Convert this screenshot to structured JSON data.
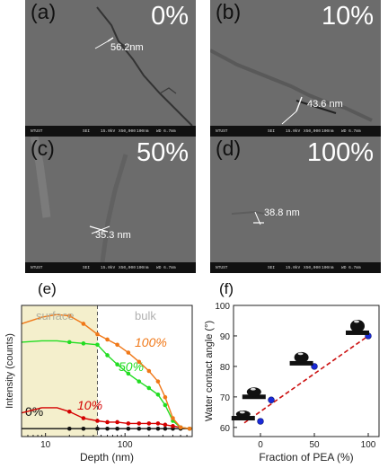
{
  "panels": [
    {
      "label": "(a)",
      "percent": "0%",
      "measure": "56.2nm"
    },
    {
      "label": "(b)",
      "percent": "10%",
      "measure": "43.6 nm"
    },
    {
      "label": "(c)",
      "percent": "50%",
      "measure": "35.3 nm"
    },
    {
      "label": "(d)",
      "percent": "100%",
      "measure": "38.8 nm"
    }
  ],
  "infobar": {
    "left": "NTUST",
    "a": "SEI",
    "b": "15.0kV",
    "c": "X50,000",
    "d": "100nm",
    "e": "WD 6.7mm"
  },
  "panel_e_label": "(e)",
  "panel_f_label": "(f)",
  "colors": {
    "surface_fill": "#f4efcc",
    "s0": "#111111",
    "s10": "#d40000",
    "s50": "#22dd22",
    "s100": "#f07818",
    "f_points": "#1a2ad8",
    "f_fit": "#cc1111"
  },
  "chart_data": [
    {
      "type": "line",
      "xlabel": "Depth (nm)",
      "ylabel": "Intensity (counts)",
      "xscale": "log",
      "xlim": [
        5,
        700
      ],
      "xticks": [
        "10",
        "100"
      ],
      "annotations": [
        "surface",
        "bulk"
      ],
      "boundary_x": 45,
      "series": [
        {
          "name": "0%",
          "x": [
            5,
            9,
            14,
            20,
            30,
            45,
            60,
            80,
            110,
            150,
            200,
            260,
            320,
            400,
            500,
            650
          ],
          "y": [
            0.06,
            0.06,
            0.06,
            0.06,
            0.06,
            0.06,
            0.06,
            0.06,
            0.06,
            0.06,
            0.06,
            0.06,
            0.06,
            0.06,
            0.06,
            0.06
          ]
        },
        {
          "name": "10%",
          "x": [
            5,
            9,
            14,
            20,
            30,
            45,
            60,
            80,
            110,
            150,
            200,
            260,
            320,
            400,
            500,
            650
          ],
          "y": [
            0.18,
            0.22,
            0.22,
            0.19,
            0.14,
            0.12,
            0.11,
            0.11,
            0.1,
            0.1,
            0.1,
            0.1,
            0.09,
            0.08,
            0.07,
            0.06
          ]
        },
        {
          "name": "50%",
          "x": [
            5,
            9,
            14,
            20,
            30,
            45,
            60,
            80,
            110,
            150,
            200,
            260,
            320,
            400,
            500,
            650
          ],
          "y": [
            0.72,
            0.73,
            0.73,
            0.72,
            0.71,
            0.7,
            0.62,
            0.55,
            0.48,
            0.42,
            0.37,
            0.32,
            0.24,
            0.12,
            0.07,
            0.06
          ]
        },
        {
          "name": "100%",
          "x": [
            5,
            9,
            14,
            20,
            30,
            45,
            60,
            80,
            110,
            150,
            200,
            260,
            320,
            400,
            500,
            650
          ],
          "y": [
            0.86,
            0.91,
            0.93,
            0.92,
            0.86,
            0.78,
            0.74,
            0.7,
            0.64,
            0.57,
            0.5,
            0.42,
            0.3,
            0.14,
            0.07,
            0.06
          ]
        }
      ]
    },
    {
      "type": "scatter",
      "xlabel": "Fraction of PEA (%)",
      "ylabel": "Water contact angle (°)",
      "xlim": [
        -25,
        110
      ],
      "ylim": [
        57,
        100
      ],
      "xticks": [
        0,
        50,
        100
      ],
      "yticks": [
        60,
        70,
        80,
        90,
        100
      ],
      "points": {
        "x": [
          0,
          10,
          50,
          100
        ],
        "y": [
          62,
          69,
          80,
          90
        ]
      },
      "fit": {
        "x": [
          -15,
          100
        ],
        "y": [
          61.5,
          90
        ]
      }
    }
  ]
}
